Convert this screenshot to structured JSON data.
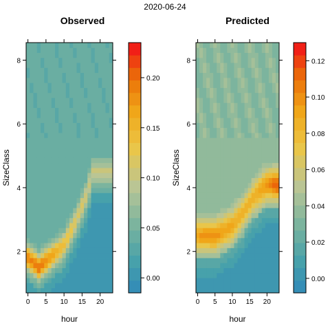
{
  "suptitle": "2020-06-24",
  "chart_data": [
    {
      "type": "heatmap",
      "title": "Observed",
      "xlabel": "hour",
      "ylabel": "SizeClass",
      "x_ticks": [
        "0",
        "5",
        "10",
        "15",
        "20"
      ],
      "y_ticks": [
        "2",
        "4",
        "6",
        "8"
      ],
      "xlim": [
        -0.5,
        23.5
      ],
      "ylim": [
        0.7,
        8.55
      ],
      "colorbar_ticks": [
        "0.00",
        "0.05",
        "0.10",
        "0.15",
        "0.20"
      ],
      "colorbar_range": [
        -0.015,
        0.235
      ],
      "colorbar_step": 0.0125,
      "ridge": [
        [
          0,
          1.8
        ],
        [
          3,
          1.5
        ],
        [
          7,
          1.9
        ],
        [
          10,
          2.2
        ],
        [
          13,
          2.9
        ],
        [
          16,
          3.7
        ],
        [
          18,
          4.5
        ]
      ],
      "ridge_peak": [
        [
          0,
          0.19
        ],
        [
          3,
          0.2
        ],
        [
          7,
          0.17
        ],
        [
          10,
          0.14
        ],
        [
          13,
          0.12
        ],
        [
          16,
          0.11
        ],
        [
          18,
          0.1
        ]
      ],
      "ridge_width": 0.35,
      "background": 0.04,
      "low_region_value": 0.0
    },
    {
      "type": "heatmap",
      "title": "Predicted",
      "xlabel": "hour",
      "ylabel": "SizeClass",
      "x_ticks": [
        "0",
        "5",
        "10",
        "15",
        "20"
      ],
      "y_ticks": [
        "2",
        "4",
        "6",
        "8"
      ],
      "xlim": [
        -0.5,
        23.5
      ],
      "ylim": [
        0.7,
        8.55
      ],
      "colorbar_ticks": [
        "0.00",
        "0.02",
        "0.04",
        "0.06",
        "0.08",
        "0.10",
        "0.12"
      ],
      "colorbar_range": [
        -0.008,
        0.13
      ],
      "colorbar_step": 0.0069,
      "ridge": [
        [
          0,
          2.5
        ],
        [
          5,
          2.5
        ],
        [
          10,
          2.8
        ],
        [
          13,
          3.2
        ],
        [
          16,
          3.7
        ],
        [
          20,
          4.1
        ],
        [
          23,
          4.1
        ]
      ],
      "ridge_peak": [
        [
          0,
          0.095
        ],
        [
          5,
          0.1
        ],
        [
          10,
          0.09
        ],
        [
          13,
          0.085
        ],
        [
          16,
          0.085
        ],
        [
          20,
          0.1
        ],
        [
          23,
          0.115
        ]
      ],
      "ridge_width": 0.45,
      "background": 0.035,
      "low_region_value": 0.005
    }
  ]
}
